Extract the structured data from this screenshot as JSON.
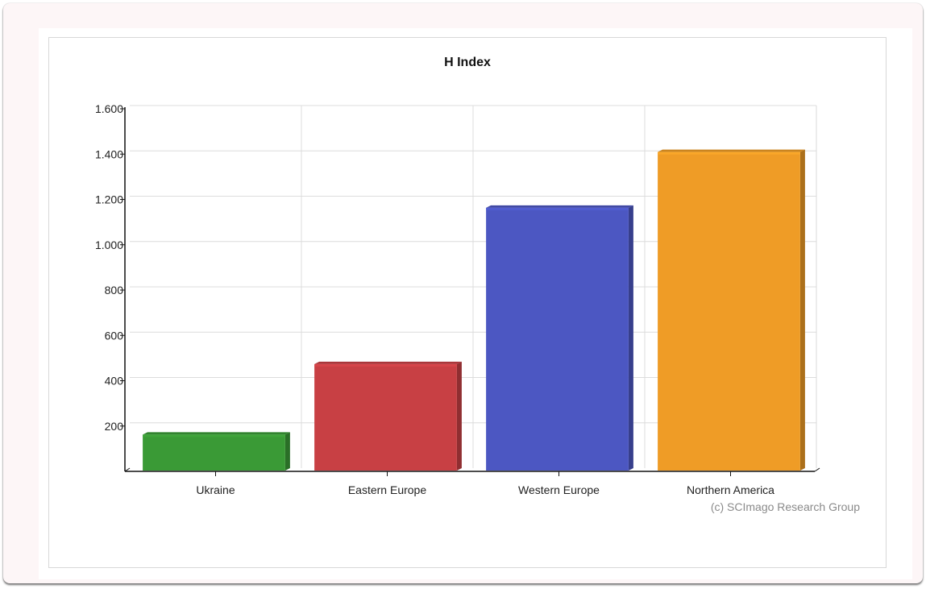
{
  "chart_data": {
    "type": "bar",
    "title": "H Index",
    "xlabel": "",
    "ylabel": "",
    "categories": [
      "Ukraine",
      "Eastern Europe",
      "Western Europe",
      "Northern America"
    ],
    "values": [
      148,
      459,
      1149,
      1395
    ],
    "colors": [
      "#3a9a36",
      "#c84044",
      "#4c57c2",
      "#ef9c26"
    ],
    "ylim": [
      0,
      1600
    ],
    "yticks": [
      200,
      400,
      600,
      800,
      1000,
      1200,
      1400,
      1600
    ],
    "ytick_labels": [
      "200",
      "400",
      "600",
      "800",
      "1.000",
      "1.200",
      "1.400",
      "1.600"
    ],
    "grid": true,
    "credit": "(c) SCImago Research Group"
  }
}
